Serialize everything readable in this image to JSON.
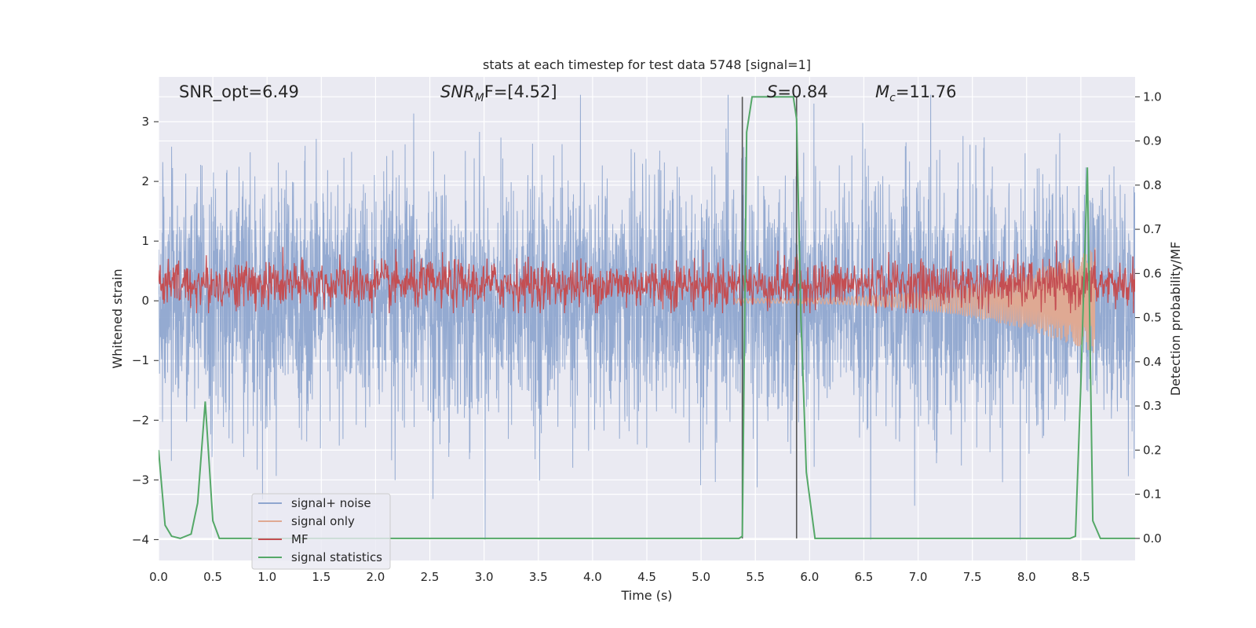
{
  "chart_data": {
    "type": "line",
    "title": "stats at each timestep for test data 5748 [signal=1]",
    "xlabel": "Time (s)",
    "ylabel": "Whitened strain",
    "ylabel_right": "Detection probability/MF",
    "xlim": [
      0.0,
      9.0
    ],
    "ylim": [
      -4.35,
      3.75
    ],
    "ylim_right": [
      -0.05,
      1.045
    ],
    "xticks": [
      "0.0",
      "0.5",
      "1.0",
      "1.5",
      "2.0",
      "2.5",
      "3.0",
      "3.5",
      "4.0",
      "4.5",
      "5.0",
      "5.5",
      "6.0",
      "6.5",
      "7.0",
      "7.5",
      "8.0",
      "8.5"
    ],
    "yticks": [
      "3",
      "2",
      "1",
      "0",
      "−1",
      "−2",
      "−3",
      "−4"
    ],
    "yticks_right": [
      "1.0",
      "0.9",
      "0.8",
      "0.7",
      "0.6",
      "0.5",
      "0.4",
      "0.3",
      "0.2",
      "0.1",
      "0.0"
    ],
    "grid": true,
    "legend_position": "lower-left",
    "annotations": {
      "snr_opt": "SNR_opt=6.49",
      "snr_mf_sym": "SNR",
      "snr_mf_sub": "M",
      "snr_mf_rest": "F=[4.52]",
      "s_sym": "S",
      "s_rest": "=0.84",
      "mc_sym": "M",
      "mc_sub": "c",
      "mc_rest": "=11.76"
    },
    "vertical_markers": [
      5.38,
      5.88
    ],
    "series": [
      {
        "name": "signal+ noise",
        "color": "#8fa6cf",
        "description_values": {
          "amplitude_range": [
            -4.0,
            3.45
          ],
          "typical_std": 1.0
        }
      },
      {
        "name": "signal only",
        "color": "#dfa993",
        "envelope": {
          "start_t": 5.3,
          "end_t": 8.63,
          "max_amp": 0.85
        }
      },
      {
        "name": "MF",
        "color": "#c44e52",
        "range_right_axis": [
          0.51,
          0.68
        ]
      },
      {
        "name": "signal statistics",
        "color": "#55a868",
        "x": [
          0.0,
          0.06,
          0.12,
          0.2,
          0.3,
          0.36,
          0.43,
          0.5,
          0.56,
          5.3,
          5.35,
          5.38,
          5.42,
          5.47,
          5.55,
          5.85,
          5.88,
          5.92,
          5.97,
          6.05,
          6.1,
          8.4,
          8.45,
          8.5,
          8.56,
          8.61,
          8.68,
          9.0
        ],
        "values": [
          0.2,
          0.03,
          0.005,
          0.0,
          0.01,
          0.08,
          0.31,
          0.04,
          0.0,
          0.0,
          0.0,
          0.005,
          0.92,
          1.0,
          1.0,
          1.0,
          0.95,
          0.5,
          0.15,
          0.0,
          0.0,
          0.0,
          0.005,
          0.35,
          0.84,
          0.04,
          0.0,
          0.0
        ]
      }
    ]
  }
}
